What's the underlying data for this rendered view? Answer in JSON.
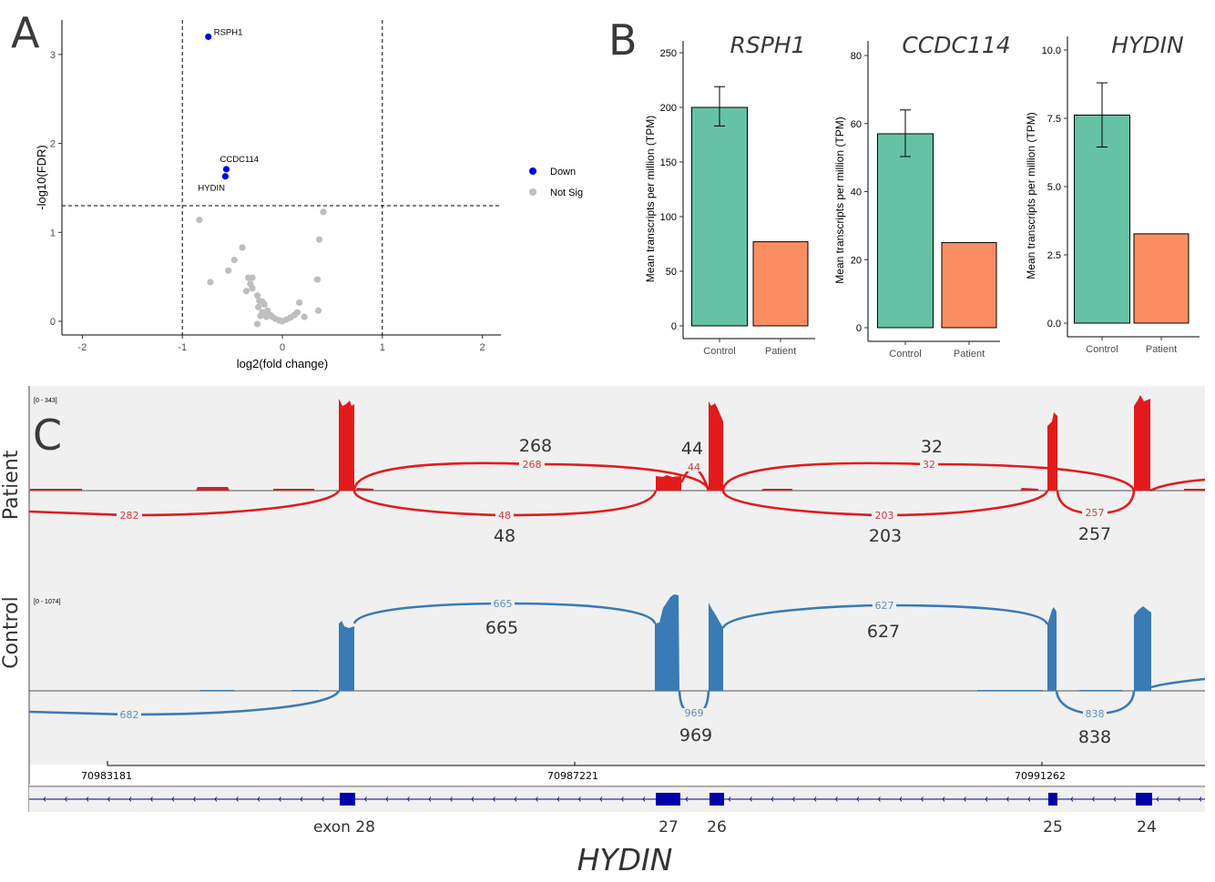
{
  "panels": {
    "A": "A",
    "B": "B",
    "C": "C"
  },
  "chart_data": [
    {
      "id": "volcano",
      "type": "scatter",
      "title": "",
      "xlabel": "log2(fold change)",
      "ylabel": "-log10(FDR)",
      "xlim": [
        -2.2,
        2.2
      ],
      "ylim": [
        -0.1,
        3.35
      ],
      "xticks": [
        -2,
        -1,
        0,
        1,
        2
      ],
      "yticks": [
        0,
        1,
        2,
        3
      ],
      "thresholds": {
        "vertical": [
          -1,
          1
        ],
        "horizontal": 1.3
      },
      "legend": {
        "position": "right",
        "entries": [
          {
            "label": "Down",
            "color": "#0000ee"
          },
          {
            "label": "Not Sig",
            "color": "#bebebe"
          }
        ]
      },
      "series": [
        {
          "name": "Down",
          "color": "#0000ee",
          "points": [
            {
              "x": -0.74,
              "y": 3.2,
              "label": "RSPH1"
            },
            {
              "x": -0.56,
              "y": 1.71,
              "label": "CCDC114"
            },
            {
              "x": -0.57,
              "y": 1.63,
              "label": "HYDIN"
            }
          ]
        },
        {
          "name": "Not Sig",
          "color": "#bebebe",
          "points": [
            {
              "x": -0.83,
              "y": 1.14
            },
            {
              "x": 0.41,
              "y": 1.23
            },
            {
              "x": 0.37,
              "y": 0.92
            },
            {
              "x": -0.72,
              "y": 0.44
            },
            {
              "x": -0.48,
              "y": 0.69
            },
            {
              "x": -0.4,
              "y": 0.83
            },
            {
              "x": -0.54,
              "y": 0.57
            },
            {
              "x": -0.34,
              "y": 0.49
            },
            {
              "x": -0.3,
              "y": 0.49
            },
            {
              "x": -0.32,
              "y": 0.42
            },
            {
              "x": -0.3,
              "y": 0.37
            },
            {
              "x": -0.36,
              "y": 0.34
            },
            {
              "x": -0.25,
              "y": 0.29
            },
            {
              "x": -0.23,
              "y": 0.23
            },
            {
              "x": -0.2,
              "y": 0.22
            },
            {
              "x": -0.18,
              "y": 0.19
            },
            {
              "x": -0.24,
              "y": 0.16
            },
            {
              "x": -0.15,
              "y": 0.12
            },
            {
              "x": -0.2,
              "y": 0.1
            },
            {
              "x": -0.12,
              "y": 0.07
            },
            {
              "x": -0.22,
              "y": 0.06
            },
            {
              "x": -0.1,
              "y": 0.05
            },
            {
              "x": -0.07,
              "y": 0.03
            },
            {
              "x": -0.03,
              "y": 0.01
            },
            {
              "x": 0.0,
              "y": 0.0
            },
            {
              "x": 0.04,
              "y": 0.02
            },
            {
              "x": 0.08,
              "y": 0.04
            },
            {
              "x": 0.12,
              "y": 0.07
            },
            {
              "x": 0.15,
              "y": 0.1
            },
            {
              "x": 0.17,
              "y": 0.21
            },
            {
              "x": 0.22,
              "y": 0.05
            },
            {
              "x": 0.35,
              "y": 0.47
            },
            {
              "x": 0.36,
              "y": 0.12
            },
            {
              "x": -0.25,
              "y": -0.03
            },
            {
              "x": -0.16,
              "y": 0.05
            }
          ]
        }
      ]
    },
    {
      "id": "tpm-rsph1",
      "type": "bar",
      "title": "RSPH1",
      "ylabel": "Mean transcripts per million (TPM)",
      "categories": [
        "Control",
        "Patient"
      ],
      "values": [
        200,
        77
      ],
      "errors": [
        {
          "low": 183,
          "high": 219
        },
        null
      ],
      "colors": [
        "#66c2a5",
        "#fc8d62"
      ],
      "ylim": [
        -10,
        262
      ],
      "yticks": [
        0,
        50,
        100,
        150,
        200,
        250
      ],
      "ytick_labels": [
        "0",
        "50",
        "100",
        "150",
        "200",
        "250"
      ]
    },
    {
      "id": "tpm-ccdc114",
      "type": "bar",
      "title": "CCDC114",
      "ylabel": "Mean transcripts per million (TPM)",
      "categories": [
        "Control",
        "Patient"
      ],
      "values": [
        57,
        25
      ],
      "errors": [
        {
          "low": 50.3,
          "high": 64
        },
        null
      ],
      "colors": [
        "#66c2a5",
        "#fc8d62"
      ],
      "ylim": [
        -4,
        84
      ],
      "yticks": [
        0,
        20,
        40,
        60,
        80
      ],
      "ytick_labels": [
        "0",
        "20",
        "40",
        "60",
        "80"
      ]
    },
    {
      "id": "tpm-hydin",
      "type": "bar",
      "title": "HYDIN",
      "ylabel": "Mean transcripts per million (TPM)",
      "categories": [
        "Control",
        "Patient"
      ],
      "values": [
        7.62,
        3.27
      ],
      "errors": [
        {
          "low": 6.45,
          "high": 8.8
        },
        null
      ],
      "colors": [
        "#66c2a5",
        "#fc8d62"
      ],
      "ylim": [
        -0.5,
        10.5
      ],
      "yticks": [
        0,
        2.5,
        5,
        7.5,
        10
      ],
      "ytick_labels": [
        "0.0",
        "2.5",
        "5.0",
        "7.5",
        "10.0"
      ]
    },
    {
      "id": "sashimi",
      "type": "area",
      "gene": "HYDIN",
      "tracks": [
        {
          "name": "Patient",
          "range_label": "[0 - 343]",
          "color": "#e31a1c",
          "junctions_above": [
            {
              "count": 268,
              "big_label": "268"
            },
            {
              "count": 44,
              "big_label": "44"
            },
            {
              "count": 32,
              "big_label": "32"
            }
          ],
          "junctions_below": [
            {
              "count": 282,
              "big_label": ""
            },
            {
              "count": 48,
              "big_label": "48"
            },
            {
              "count": 203,
              "big_label": "203"
            },
            {
              "count": 257,
              "big_label": "257"
            }
          ]
        },
        {
          "name": "Control",
          "range_label": "[0 - 1074]",
          "color": "#3a7ab5",
          "junctions_above": [
            {
              "count": 665,
              "big_label": "665"
            },
            {
              "count": 627,
              "big_label": "627"
            }
          ],
          "junctions_below": [
            {
              "count": 682,
              "big_label": ""
            },
            {
              "count": 969,
              "big_label": "969"
            },
            {
              "count": 838,
              "big_label": "838"
            }
          ]
        }
      ],
      "coordinates": [
        "70983181",
        "70987221",
        "70991262"
      ],
      "exons": [
        {
          "label": "exon 28"
        },
        {
          "label": "27"
        },
        {
          "label": "26"
        },
        {
          "label": "25"
        },
        {
          "label": "24"
        }
      ],
      "gene_label": "HYDIN"
    }
  ]
}
